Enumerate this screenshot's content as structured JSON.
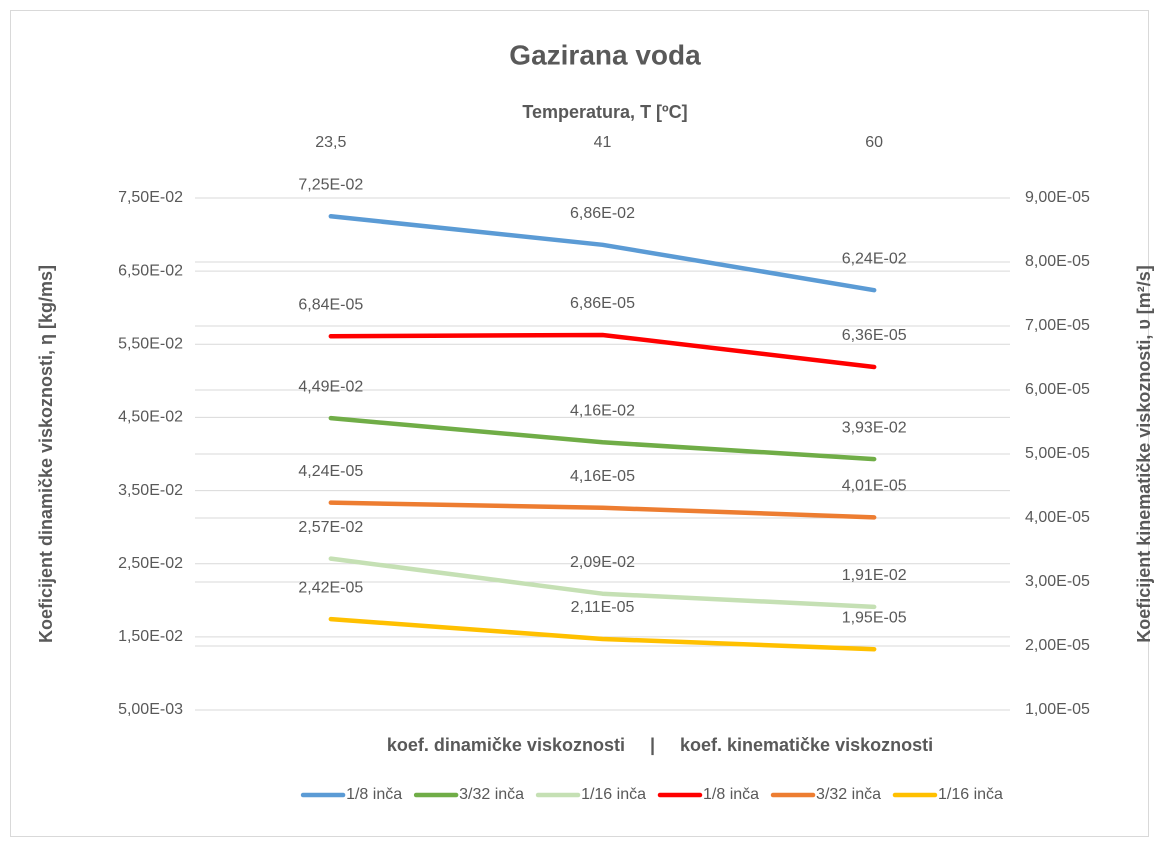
{
  "chart_data": {
    "type": "line",
    "title": "Gazirana voda",
    "x_label": "Temperatura, T [ºC]",
    "y_label": "Koeficijent dinamičke viskoznosti, η [kg/ms]",
    "y2_label": "Koeficijent kinematičke viskoznosti, υ [m²/s]",
    "annotation": "koef. dinamičke viskoznosti     |     koef. kinematičke viskoznosti",
    "categories": [
      "23,5",
      "41",
      "60"
    ],
    "ylim": [
      0.005,
      0.075
    ],
    "yticks": [
      {
        "value": 0.005,
        "label": "5,00E-03"
      },
      {
        "value": 0.015,
        "label": "1,50E-02"
      },
      {
        "value": 0.025,
        "label": "2,50E-02"
      },
      {
        "value": 0.035,
        "label": "3,50E-02"
      },
      {
        "value": 0.045,
        "label": "4,50E-02"
      },
      {
        "value": 0.055,
        "label": "5,50E-02"
      },
      {
        "value": 0.065,
        "label": "6,50E-02"
      },
      {
        "value": 0.075,
        "label": "7,50E-02"
      }
    ],
    "y2lim": [
      1e-05,
      9e-05
    ],
    "y2ticks": [
      {
        "value": 1e-05,
        "label": "1,00E-05"
      },
      {
        "value": 2e-05,
        "label": "2,00E-05"
      },
      {
        "value": 3e-05,
        "label": "3,00E-05"
      },
      {
        "value": 4e-05,
        "label": "4,00E-05"
      },
      {
        "value": 5e-05,
        "label": "5,00E-05"
      },
      {
        "value": 6e-05,
        "label": "6,00E-05"
      },
      {
        "value": 7e-05,
        "label": "7,00E-05"
      },
      {
        "value": 8e-05,
        "label": "8,00E-05"
      },
      {
        "value": 9e-05,
        "label": "9,00E-05"
      }
    ],
    "grid": true,
    "legend": "bottom",
    "series": [
      {
        "name": "1/8 inča",
        "color": "#5b9bd5",
        "values": [
          0.0725,
          0.0686,
          0.0624
        ],
        "value_labels": [
          "7,25E-02",
          "6,86E-02",
          "6,24E-02"
        ]
      },
      {
        "name": "3/32 inča",
        "color": "#70ad47",
        "values": [
          0.0449,
          0.0416,
          0.0393
        ],
        "value_labels": [
          "4,49E-02",
          "4,16E-02",
          "3,93E-02"
        ]
      },
      {
        "name": "1/16 inča",
        "color": "#c5e0b4",
        "values": [
          0.0257,
          0.0209,
          0.0191
        ],
        "value_labels": [
          "2,57E-02",
          "2,09E-02",
          "1,91E-02"
        ]
      },
      {
        "name": "1/8 inča",
        "color": "#ff0000",
        "axis": "y2",
        "values": [
          6.84e-05,
          6.86e-05,
          6.36e-05
        ],
        "value_labels": [
          "6,84E-05",
          "6,86E-05",
          "6,36E-05"
        ]
      },
      {
        "name": "3/32 inča",
        "color": "#ed7d31",
        "axis": "y2",
        "values": [
          4.24e-05,
          4.16e-05,
          4.01e-05
        ],
        "value_labels": [
          "4,24E-05",
          "4,16E-05",
          "4,01E-05"
        ]
      },
      {
        "name": "1/16 inča",
        "color": "#ffc000",
        "axis": "y2",
        "values": [
          2.42e-05,
          2.11e-05,
          1.95e-05
        ],
        "value_labels": [
          "2,42E-05",
          "2,11E-05",
          "1,95E-05"
        ]
      }
    ]
  }
}
